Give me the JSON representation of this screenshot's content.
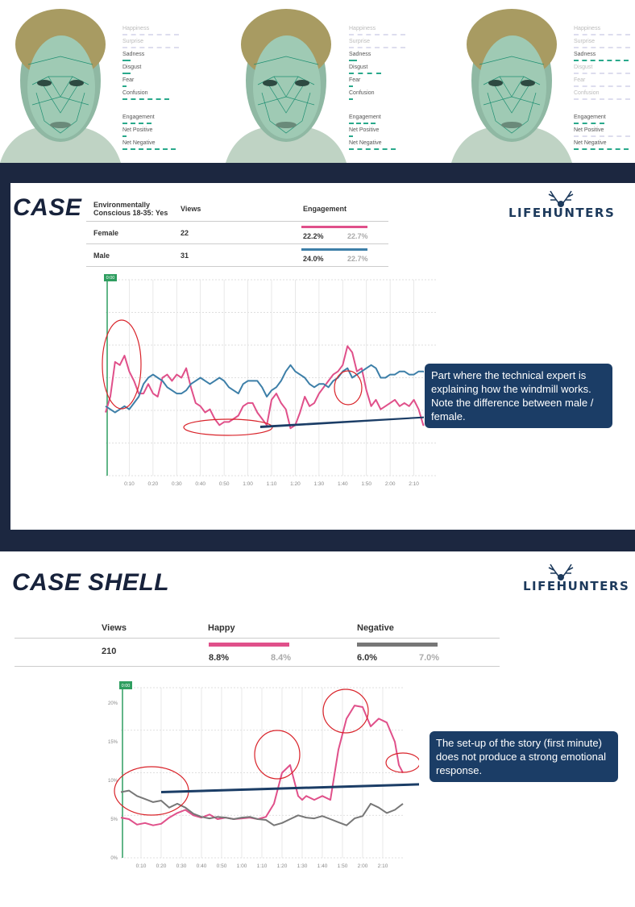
{
  "faces": {
    "panels": [
      {
        "emotions": [
          {
            "label": "Happiness",
            "dim": true,
            "bar": 0
          },
          {
            "label": "Surprise",
            "dim": true,
            "bar": 0
          },
          {
            "label": "Sadness",
            "dim": false,
            "bar": 10
          },
          {
            "label": "Disgust",
            "dim": false,
            "bar": 10
          },
          {
            "label": "Fear",
            "dim": false,
            "bar": 5
          },
          {
            "label": "Confusion",
            "dim": false,
            "bar": 58
          }
        ],
        "metrics": [
          {
            "label": "Engagement",
            "bar": 36
          },
          {
            "label": "Net Positive",
            "bar": 5
          },
          {
            "label": "Net Negative",
            "bar": 66
          }
        ]
      },
      {
        "emotions": [
          {
            "label": "Happiness",
            "dim": true,
            "bar": 0
          },
          {
            "label": "Surprise",
            "dim": true,
            "bar": 0
          },
          {
            "label": "Sadness",
            "dim": false,
            "bar": 10
          },
          {
            "label": "Disgust",
            "dim": false,
            "bar": 40
          },
          {
            "label": "Fear",
            "dim": false,
            "bar": 5
          },
          {
            "label": "Confusion",
            "dim": false,
            "bar": 5
          }
        ],
        "metrics": [
          {
            "label": "Engagement",
            "bar": 33
          },
          {
            "label": "Net Positive",
            "bar": 5
          },
          {
            "label": "Net Negative",
            "bar": 58
          }
        ]
      },
      {
        "emotions": [
          {
            "label": "Happiness",
            "dim": true,
            "bar": 0
          },
          {
            "label": "Surprise",
            "dim": true,
            "bar": 0
          },
          {
            "label": "Sadness",
            "dim": false,
            "bar": 68
          },
          {
            "label": "Disgust",
            "dim": true,
            "bar": 0
          },
          {
            "label": "Fear",
            "dim": true,
            "bar": 0
          },
          {
            "label": "Confusion",
            "dim": true,
            "bar": 0
          }
        ],
        "metrics": [
          {
            "label": "Engagement",
            "bar": 38
          },
          {
            "label": "Net Positive",
            "bar": 0
          },
          {
            "label": "Net Negative",
            "bar": 68
          }
        ]
      }
    ]
  },
  "case": {
    "title": "CASE",
    "logo": "LIFEHUNTERS",
    "table": {
      "headers": [
        "Environmentally Conscious 18-35: Yes",
        "Views",
        "Engagement"
      ],
      "rows": [
        {
          "label": "Female",
          "views": "22",
          "engagement": "22.2%",
          "benchmark": "22.7%",
          "color": "#e0508a"
        },
        {
          "label": "Male",
          "views": "31",
          "engagement": "24.0%",
          "benchmark": "22.7%",
          "color": "#3d7fa8"
        }
      ]
    },
    "callout": "Part where the technical expert is explaining how the windmill works. Note the difference between male / female.",
    "chart_data": {
      "type": "line",
      "x_ticks": [
        "0:10",
        "0:20",
        "0:30",
        "0:40",
        "0:50",
        "1:00",
        "1:10",
        "1:20",
        "1:30",
        "1:40",
        "1:50",
        "2:00",
        "2:10"
      ],
      "marker": "0:00",
      "xlim": [
        0,
        140
      ],
      "ylim": [
        0,
        6.2
      ],
      "grid": true,
      "series": [
        {
          "color": "#e0508a",
          "x": [
            0,
            2,
            4,
            6,
            8,
            10,
            12,
            14,
            16,
            18,
            20,
            22,
            24,
            26,
            28,
            30,
            32,
            34,
            36,
            38,
            40,
            42,
            44,
            46,
            48,
            50,
            52,
            54,
            56,
            58,
            60,
            62,
            64,
            66,
            68,
            70,
            72,
            74,
            76,
            78,
            80,
            82,
            84,
            86,
            88,
            90,
            92,
            94,
            96,
            98,
            100,
            102,
            104,
            106,
            108,
            110,
            112,
            114,
            116,
            118,
            120,
            122,
            124,
            126,
            128,
            130,
            132,
            134,
            136,
            138,
            140
          ],
          "y": [
            2,
            2.5,
            3.6,
            3.5,
            3.8,
            3.3,
            3.0,
            2.6,
            2.6,
            2.9,
            2.6,
            2.5,
            3.1,
            3.2,
            3.0,
            3.2,
            3.1,
            3.4,
            2.8,
            2.3,
            2.2,
            2.0,
            2.1,
            1.8,
            1.6,
            1.7,
            1.7,
            1.8,
            1.9,
            2.2,
            2.3,
            2.3,
            2.0,
            1.8,
            1.6,
            2.4,
            2.6,
            2.3,
            2.1,
            1.5,
            1.6,
            2.0,
            2.5,
            2.2,
            2.3,
            2.6,
            2.8,
            3.0,
            3.2,
            3.3,
            3.5,
            4.1,
            3.9,
            3.3,
            3.4,
            2.7,
            2.2,
            2.4,
            2.1,
            2.2,
            2.3,
            2.4,
            2.2,
            2.3,
            2.2,
            2.4,
            2.1,
            1.6,
            1.7,
            2.0,
            2.4
          ]
        },
        {
          "color": "#3d7fa8",
          "x": [
            0,
            2,
            4,
            6,
            8,
            10,
            12,
            14,
            16,
            18,
            20,
            22,
            24,
            26,
            28,
            30,
            32,
            34,
            36,
            38,
            40,
            42,
            44,
            46,
            48,
            50,
            52,
            54,
            56,
            58,
            60,
            62,
            64,
            66,
            68,
            70,
            72,
            74,
            76,
            78,
            80,
            82,
            84,
            86,
            88,
            90,
            92,
            94,
            96,
            98,
            100,
            102,
            104,
            106,
            108,
            110,
            112,
            114,
            116,
            118,
            120,
            122,
            124,
            126,
            128,
            130,
            132,
            134,
            136,
            138,
            140
          ],
          "y": [
            2.2,
            2.1,
            2.0,
            2.1,
            2.2,
            2.1,
            2.3,
            2.5,
            2.9,
            3.1,
            3.2,
            3.1,
            3.0,
            2.8,
            2.7,
            2.6,
            2.6,
            2.7,
            2.9,
            3.0,
            3.1,
            3.0,
            2.9,
            3.0,
            3.1,
            3.0,
            2.8,
            2.7,
            2.6,
            2.9,
            3.0,
            3.0,
            3.0,
            2.8,
            2.5,
            2.7,
            2.8,
            3.0,
            3.3,
            3.5,
            3.3,
            3.2,
            3.1,
            2.9,
            2.8,
            2.9,
            2.9,
            2.8,
            3.0,
            3.1,
            3.3,
            3.4,
            3.1,
            3.2,
            3.3,
            3.4,
            3.5,
            3.4,
            3.1,
            3.1,
            3.2,
            3.2,
            3.3,
            3.3,
            3.2,
            3.2,
            3.3,
            3.3,
            3.2,
            3.3,
            3.3
          ]
        }
      ]
    }
  },
  "shell": {
    "title": "CASE SHELL",
    "logo": "LIFEHUNTERS",
    "table": {
      "headers": [
        "Views",
        "Happy",
        "Negative"
      ],
      "views": "210",
      "happy": "8.8%",
      "happy_bench": "8.4%",
      "negative": "6.0%",
      "negative_bench": "7.0%",
      "happy_color": "#e0508a",
      "negative_color": "#777777"
    },
    "callout": "The set-up of the story (first minute) does not produce a strong emotional response.",
    "chart_data": {
      "type": "line",
      "x_ticks": [
        "0:10",
        "0:20",
        "0:30",
        "0:40",
        "0:50",
        "1:00",
        "1:10",
        "1:20",
        "1:30",
        "1:40",
        "1:50",
        "2:00",
        "2:10"
      ],
      "y_ticks": [
        "0%",
        "5%",
        "10%",
        "15%",
        "20%"
      ],
      "marker": "0:00",
      "xlim": [
        0,
        140
      ],
      "ylim": [
        0,
        22
      ],
      "grid": true,
      "series": [
        {
          "name": "Happy",
          "color": "#e0508a",
          "x": [
            0,
            4,
            8,
            12,
            16,
            20,
            24,
            28,
            32,
            36,
            40,
            44,
            48,
            52,
            56,
            60,
            64,
            68,
            72,
            76,
            80,
            84,
            88,
            90,
            92,
            96,
            100,
            104,
            108,
            112,
            116,
            120,
            124,
            128,
            132,
            136,
            138,
            140
          ],
          "y": [
            5.2,
            5.0,
            4.3,
            4.5,
            4.2,
            4.4,
            5.2,
            5.8,
            6.2,
            5.5,
            5.2,
            5.6,
            5.0,
            5.2,
            5.0,
            5.1,
            5.2,
            5.0,
            5.3,
            7.0,
            11.0,
            12.0,
            8.0,
            7.5,
            8.0,
            7.5,
            8.0,
            7.5,
            14.0,
            18.0,
            19.7,
            19.5,
            17.0,
            18.0,
            17.5,
            15.0,
            12.0,
            11.0
          ]
        },
        {
          "name": "Negative",
          "color": "#777777",
          "x": [
            0,
            4,
            8,
            12,
            16,
            20,
            24,
            28,
            32,
            36,
            40,
            44,
            48,
            52,
            56,
            60,
            64,
            68,
            72,
            76,
            80,
            84,
            88,
            92,
            96,
            100,
            104,
            108,
            112,
            116,
            120,
            124,
            128,
            132,
            136,
            140
          ],
          "y": [
            8.5,
            8.7,
            8.0,
            7.6,
            7.2,
            7.4,
            6.5,
            7.0,
            6.5,
            5.7,
            5.3,
            5.1,
            5.3,
            5.2,
            5.0,
            5.2,
            5.3,
            5.0,
            4.9,
            4.2,
            4.5,
            5.0,
            5.5,
            5.2,
            5.1,
            5.4,
            5.0,
            4.6,
            4.2,
            5.1,
            5.4,
            7.0,
            6.5,
            5.8,
            6.2,
            7.0
          ]
        }
      ]
    }
  }
}
